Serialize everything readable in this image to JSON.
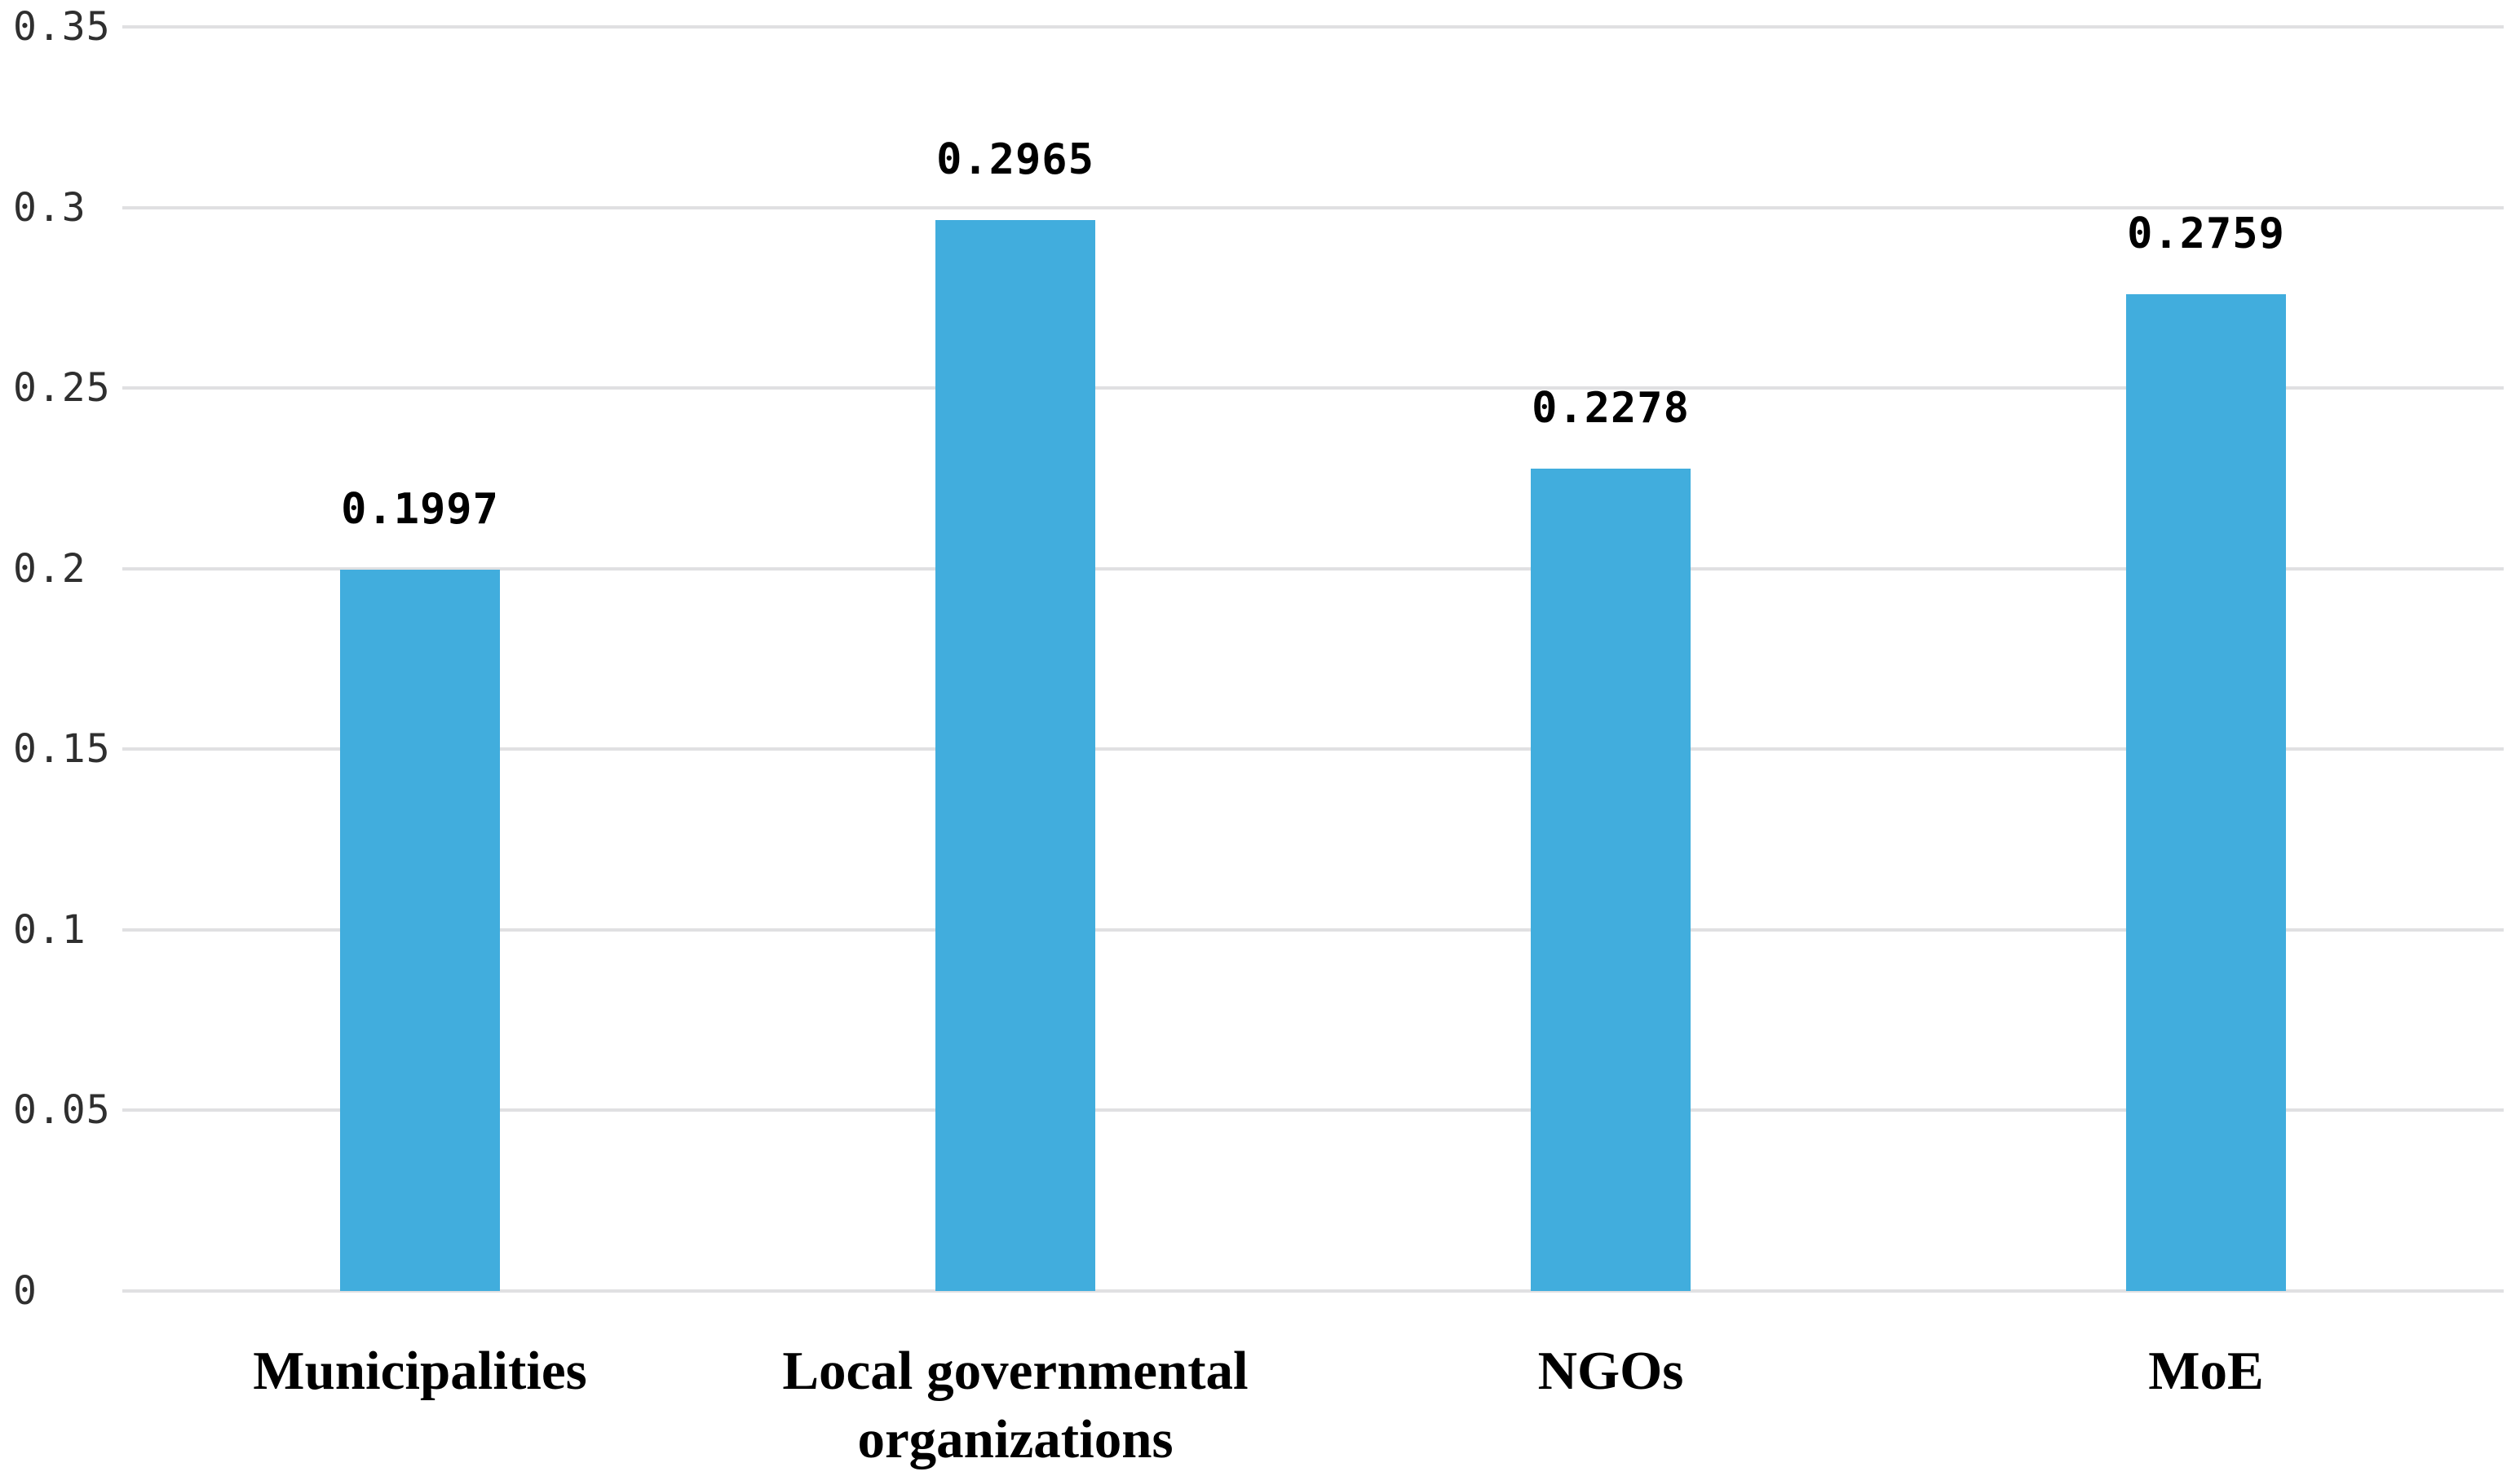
{
  "chart_data": {
    "type": "bar",
    "title": "",
    "xlabel": "",
    "ylabel": "",
    "categories": [
      "Municipalities",
      "Local governmental organizations",
      "NGOs",
      "MoE"
    ],
    "values": [
      0.1997,
      0.2965,
      0.2278,
      0.2759
    ],
    "value_labels": [
      "0.1997",
      "0.2965",
      "0.2278",
      "0.2759"
    ],
    "ylim": [
      0,
      0.35
    ],
    "yticks": [
      0,
      0.05,
      0.1,
      0.15,
      0.2,
      0.25,
      0.3,
      0.35
    ],
    "ytick_labels": [
      "0",
      "0.05",
      "0.1",
      "0.15",
      "0.2",
      "0.25",
      "0.3",
      "0.35"
    ],
    "grid": true,
    "legend": false,
    "colors": {
      "bar": "#41ADDD",
      "gridline": "#E0E0E2",
      "tick_label": "#2F2F2F",
      "value_label": "#000000",
      "category_label": "#000000",
      "background": "#FFFFFF"
    }
  }
}
